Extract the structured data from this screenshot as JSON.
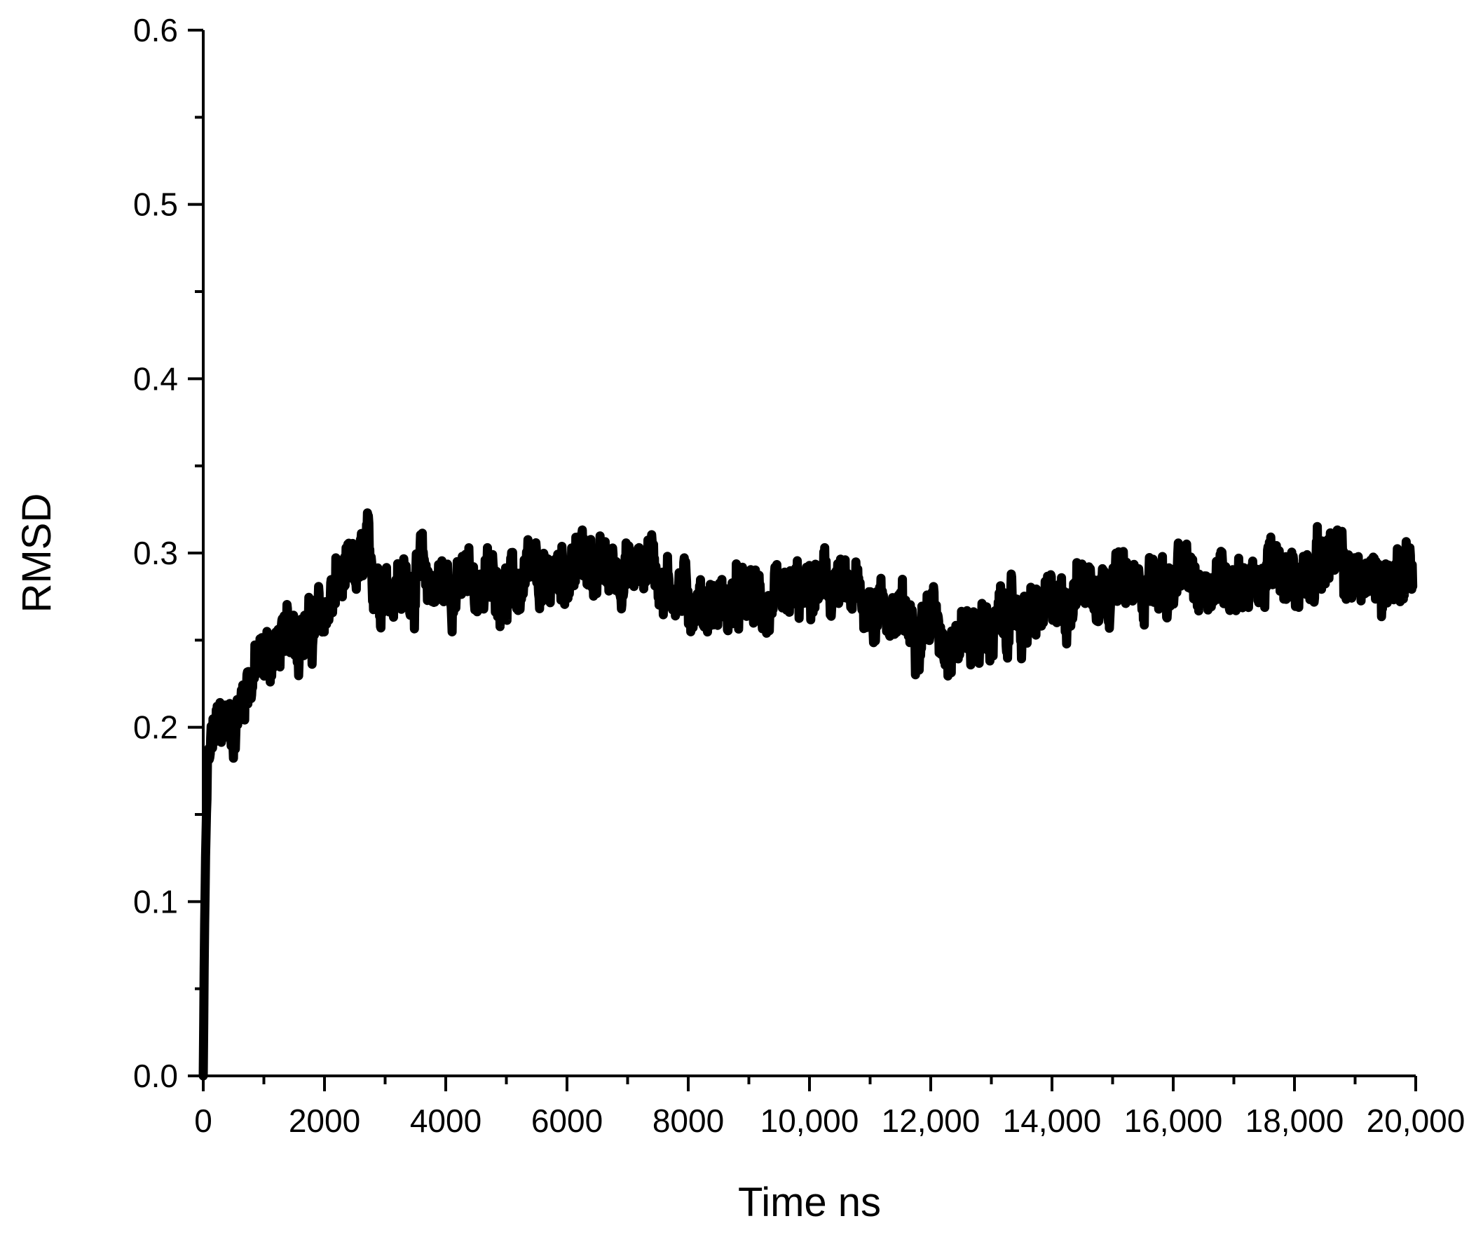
{
  "chart_data": {
    "type": "line",
    "title": "",
    "xlabel": "Time ns",
    "ylabel": "RMSD",
    "xlim": [
      0,
      20000
    ],
    "ylim": [
      0.0,
      0.6
    ],
    "grid": false,
    "legend": "none",
    "line_color": "#000000",
    "x_ticks": [
      "0",
      "2000",
      "4000",
      "6000",
      "8000",
      "10,000",
      "12,000",
      "14,000",
      "16,000",
      "18,000",
      "20,000"
    ],
    "x_tick_values": [
      0,
      2000,
      4000,
      6000,
      8000,
      10000,
      12000,
      14000,
      16000,
      18000,
      20000
    ],
    "y_ticks": [
      "0.0",
      "0.1",
      "0.2",
      "0.3",
      "0.4",
      "0.5",
      "0.6"
    ],
    "y_tick_values": [
      0.0,
      0.1,
      0.2,
      0.3,
      0.4,
      0.5,
      0.6
    ],
    "series": [
      {
        "x": [
          0,
          20,
          40,
          60,
          80,
          100,
          150,
          200,
          300,
          400,
          500,
          600,
          700,
          800,
          900,
          1000,
          1200,
          1400,
          1500,
          1600,
          1800,
          2000,
          2200,
          2400,
          2600,
          2700,
          2800,
          3000,
          3200,
          3400,
          3600,
          3800,
          4000,
          4200,
          4400,
          4600,
          4800,
          5000,
          5200,
          5400,
          5600,
          5800,
          6000,
          6200,
          6400,
          6600,
          6800,
          7000,
          7200,
          7350,
          7500,
          7600,
          7800,
          8000,
          8200,
          8400,
          8600,
          8800,
          9000,
          9200,
          9400,
          9600,
          9800,
          10000,
          10200,
          10400,
          10600,
          10800,
          11000,
          11200,
          11400,
          11600,
          11800,
          12000,
          12200,
          12400,
          12600,
          12800,
          13000,
          13200,
          13400,
          13600,
          13800,
          14000,
          14200,
          14400,
          14600,
          14800,
          15000,
          15200,
          15400,
          15600,
          15800,
          16000,
          16200,
          16400,
          16600,
          16800,
          17000,
          17200,
          17400,
          17600,
          17800,
          18000,
          18200,
          18400,
          18600,
          18800,
          19000,
          19200,
          19400,
          19600,
          19800,
          19950
        ],
        "y": [
          0.0,
          0.08,
          0.13,
          0.16,
          0.175,
          0.18,
          0.19,
          0.195,
          0.2,
          0.205,
          0.2,
          0.21,
          0.225,
          0.23,
          0.235,
          0.24,
          0.245,
          0.25,
          0.26,
          0.255,
          0.255,
          0.265,
          0.28,
          0.285,
          0.29,
          0.3,
          0.285,
          0.28,
          0.285,
          0.28,
          0.29,
          0.28,
          0.285,
          0.28,
          0.285,
          0.28,
          0.285,
          0.28,
          0.28,
          0.285,
          0.28,
          0.29,
          0.29,
          0.295,
          0.295,
          0.29,
          0.29,
          0.29,
          0.29,
          0.3,
          0.29,
          0.28,
          0.28,
          0.275,
          0.27,
          0.27,
          0.27,
          0.27,
          0.275,
          0.27,
          0.265,
          0.27,
          0.275,
          0.275,
          0.28,
          0.28,
          0.275,
          0.275,
          0.27,
          0.27,
          0.265,
          0.26,
          0.26,
          0.265,
          0.255,
          0.25,
          0.255,
          0.255,
          0.255,
          0.26,
          0.265,
          0.26,
          0.265,
          0.27,
          0.27,
          0.28,
          0.285,
          0.28,
          0.285,
          0.28,
          0.28,
          0.285,
          0.28,
          0.28,
          0.285,
          0.28,
          0.285,
          0.285,
          0.285,
          0.285,
          0.28,
          0.29,
          0.285,
          0.285,
          0.29,
          0.295,
          0.3,
          0.29,
          0.285,
          0.285,
          0.285,
          0.285,
          0.29,
          0.295
        ],
        "noise_amplitude": 0.02
      }
    ]
  }
}
